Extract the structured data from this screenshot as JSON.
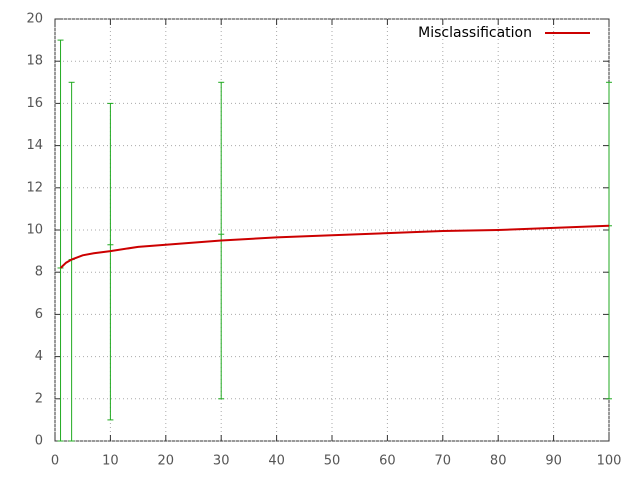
{
  "chart_data": {
    "type": "line",
    "series": [
      {
        "name": "Misclassification",
        "color": "#cc0000",
        "x": [
          1,
          2,
          3,
          5,
          7,
          10,
          15,
          20,
          30,
          40,
          50,
          60,
          70,
          80,
          90,
          100
        ],
        "values": [
          8.2,
          8.45,
          8.6,
          8.8,
          8.9,
          9.0,
          9.2,
          9.3,
          9.5,
          9.65,
          9.75,
          9.85,
          9.95,
          10.0,
          10.1,
          10.2
        ]
      }
    ],
    "errorbars": {
      "color": "#22aa22",
      "x": [
        1,
        3,
        10,
        30,
        100
      ],
      "values": [
        8.2,
        8.6,
        9.3,
        9.8,
        10.2
      ],
      "low": [
        0,
        0,
        1,
        2,
        2
      ],
      "high": [
        19,
        17,
        16,
        17,
        17
      ]
    },
    "xlim": [
      0,
      100
    ],
    "xticks": [
      0,
      10,
      20,
      30,
      40,
      50,
      60,
      70,
      80,
      90,
      100
    ],
    "ylim": [
      0,
      20
    ],
    "yticks": [
      0,
      2,
      4,
      6,
      8,
      10,
      12,
      14,
      16,
      18,
      20
    ],
    "grid": true
  }
}
